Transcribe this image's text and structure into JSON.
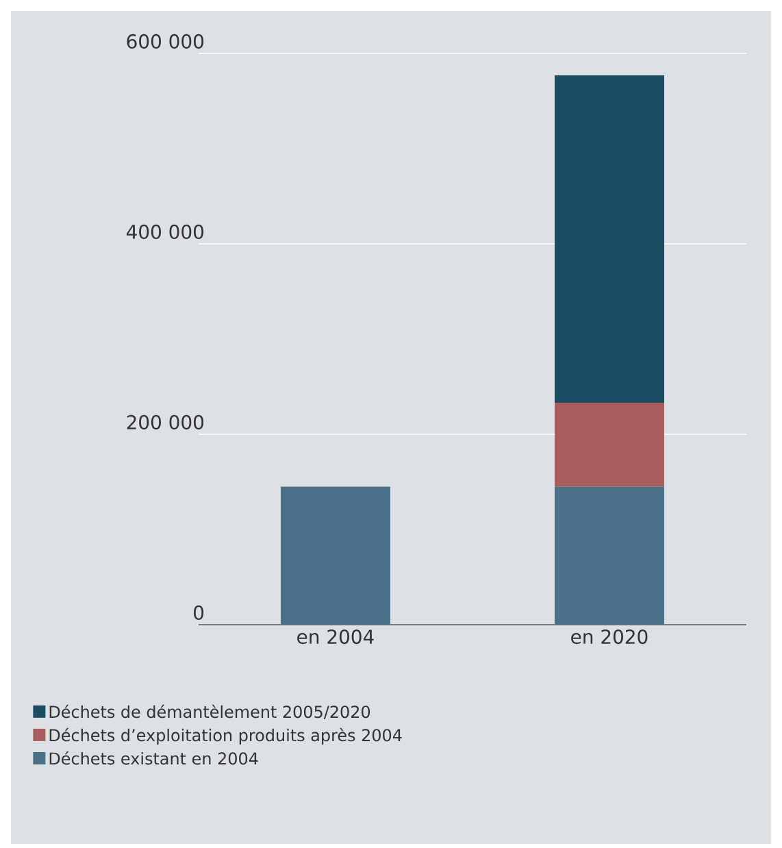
{
  "chart_data": {
    "type": "bar",
    "stacked": true,
    "categories": [
      "en 2004",
      "en 2020"
    ],
    "series": [
      {
        "name": "Déchets existant en 2004",
        "color": "#4a7189",
        "values": [
          145000,
          145000
        ]
      },
      {
        "name": "Déchets d’exploitation produits après 2004",
        "color": "#a85e5e",
        "values": [
          null,
          88000
        ]
      },
      {
        "name": "Déchets de démantèlement 2005/2020",
        "color": "#1a4c62",
        "values": [
          null,
          344000
        ]
      }
    ],
    "ylim": [
      0,
      600000
    ],
    "yticks": [
      {
        "value": 0,
        "label": "0"
      },
      {
        "value": 200000,
        "label": "200 000"
      },
      {
        "value": 400000,
        "label": "400 000"
      },
      {
        "value": 600000,
        "label": "600 000"
      }
    ],
    "grid": "y",
    "legend": "bottom"
  }
}
